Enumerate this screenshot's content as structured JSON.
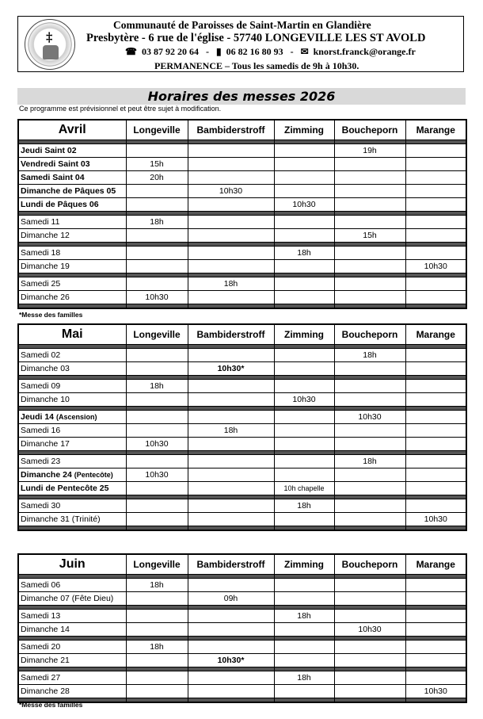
{
  "header": {
    "logo_text": "Communauté de Paroisses de Saint-Martin en Glandière",
    "line1": "Communauté de Paroisses de Saint-Martin en Glandière",
    "line2": "Presbytère - 6 rue de l'église - 57740 LONGEVILLE LES ST AVOLD",
    "phone_icon": "telephone-icon",
    "phone": "03 87 92 20 64",
    "mobile_icon": "mobile-phone-icon",
    "mobile": "06 82 16 80 93",
    "email_icon": "envelope-icon",
    "email": "knorst.franck@orange.fr",
    "separator": "-",
    "line4": "PERMANENCE – Tous les samedis de 9h à 10h30."
  },
  "title": "Horaires des messes 2026",
  "disclaimer": "Ce programme est prévisionnel et peut être sujet à modification.",
  "columns": [
    "Longeville",
    "Bambiderstroff",
    "Zimming",
    "Boucheporn",
    "Marange"
  ],
  "footnote": "*Messe des familles",
  "months": [
    {
      "name": "Avril",
      "groups": [
        [
          {
            "label": "Jeudi Saint 02",
            "bold": true,
            "cells": [
              "",
              "",
              "",
              "19h",
              ""
            ]
          },
          {
            "label": "Vendredi Saint 03",
            "bold": true,
            "cells": [
              "15h",
              "",
              "",
              "",
              ""
            ]
          },
          {
            "label": "Samedi Saint 04",
            "bold": true,
            "cells": [
              "20h",
              "",
              "",
              "",
              ""
            ]
          },
          {
            "label": "Dimanche de Pâques 05",
            "bold": true,
            "cells": [
              "",
              "10h30",
              "",
              "",
              ""
            ]
          },
          {
            "label": "Lundi de Pâques 06",
            "bold": true,
            "cells": [
              "",
              "",
              "10h30",
              "",
              ""
            ]
          }
        ],
        [
          {
            "label": "Samedi 11",
            "cells": [
              "18h",
              "",
              "",
              "",
              ""
            ]
          },
          {
            "label": "Dimanche 12",
            "cells": [
              "",
              "",
              "",
              "15h",
              ""
            ]
          }
        ],
        [
          {
            "label": "Samedi 18",
            "cells": [
              "",
              "",
              "18h",
              "",
              ""
            ]
          },
          {
            "label": "Dimanche 19",
            "cells": [
              "",
              "",
              "",
              "",
              "10h30"
            ]
          }
        ],
        [
          {
            "label": "Samedi 25",
            "cells": [
              "",
              "18h",
              "",
              "",
              ""
            ]
          },
          {
            "label": "Dimanche 26",
            "cells": [
              "10h30",
              "",
              "",
              "",
              ""
            ]
          }
        ]
      ]
    },
    {
      "name": "Mai",
      "groups": [
        [
          {
            "label": "Samedi 02",
            "cells": [
              "",
              "",
              "",
              "18h",
              ""
            ]
          },
          {
            "label": "Dimanche 03",
            "cells": [
              "",
              "10h30*",
              "",
              "",
              ""
            ],
            "bold_cell": 1
          }
        ],
        [
          {
            "label": "Samedi 09",
            "cells": [
              "18h",
              "",
              "",
              "",
              ""
            ]
          },
          {
            "label": "Dimanche 10",
            "cells": [
              "",
              "",
              "10h30",
              "",
              ""
            ]
          }
        ],
        [
          {
            "label": "Jeudi 14",
            "suffix": "(Ascension)",
            "bold": true,
            "cells": [
              "",
              "",
              "",
              "10h30",
              ""
            ]
          },
          {
            "label": "Samedi 16",
            "cells": [
              "",
              "18h",
              "",
              "",
              ""
            ]
          },
          {
            "label": "Dimanche 17",
            "cells": [
              "10h30",
              "",
              "",
              "",
              ""
            ]
          }
        ],
        [
          {
            "label": "Samedi 23",
            "cells": [
              "",
              "",
              "",
              "18h",
              ""
            ]
          },
          {
            "label": "Dimanche 24",
            "suffix": "(Pentecôte)",
            "bold": true,
            "cells": [
              "10h30",
              "",
              "",
              "",
              ""
            ]
          },
          {
            "label": "Lundi de Pentecôte 25",
            "bold": true,
            "cells": [
              "",
              "",
              "10h chapelle",
              "",
              ""
            ]
          }
        ],
        [
          {
            "label": "Samedi 30",
            "cells": [
              "",
              "",
              "18h",
              "",
              ""
            ]
          },
          {
            "label": "Dimanche 31 (Trinité)",
            "cells": [
              "",
              "",
              "",
              "",
              "10h30"
            ]
          }
        ]
      ]
    },
    {
      "name": "Juin",
      "groups": [
        [
          {
            "label": "Samedi 06",
            "cells": [
              "18h",
              "",
              "",
              "",
              ""
            ]
          },
          {
            "label": "Dimanche 07 (Fête Dieu)",
            "cells": [
              "",
              "09h",
              "",
              "",
              ""
            ]
          }
        ],
        [
          {
            "label": "Samedi 13",
            "cells": [
              "",
              "",
              "18h",
              "",
              ""
            ]
          },
          {
            "label": "Dimanche 14",
            "cells": [
              "",
              "",
              "",
              "10h30",
              ""
            ]
          }
        ],
        [
          {
            "label": "Samedi 20",
            "cells": [
              "18h",
              "",
              "",
              "",
              ""
            ]
          },
          {
            "label": "Dimanche 21",
            "cells": [
              "",
              "10h30*",
              "",
              "",
              ""
            ],
            "bold_cell": 1
          }
        ],
        [
          {
            "label": "Samedi 27",
            "cells": [
              "",
              "",
              "18h",
              "",
              ""
            ]
          },
          {
            "label": "Dimanche 28",
            "cells": [
              "",
              "",
              "",
              "",
              "10h30"
            ]
          }
        ]
      ]
    }
  ]
}
